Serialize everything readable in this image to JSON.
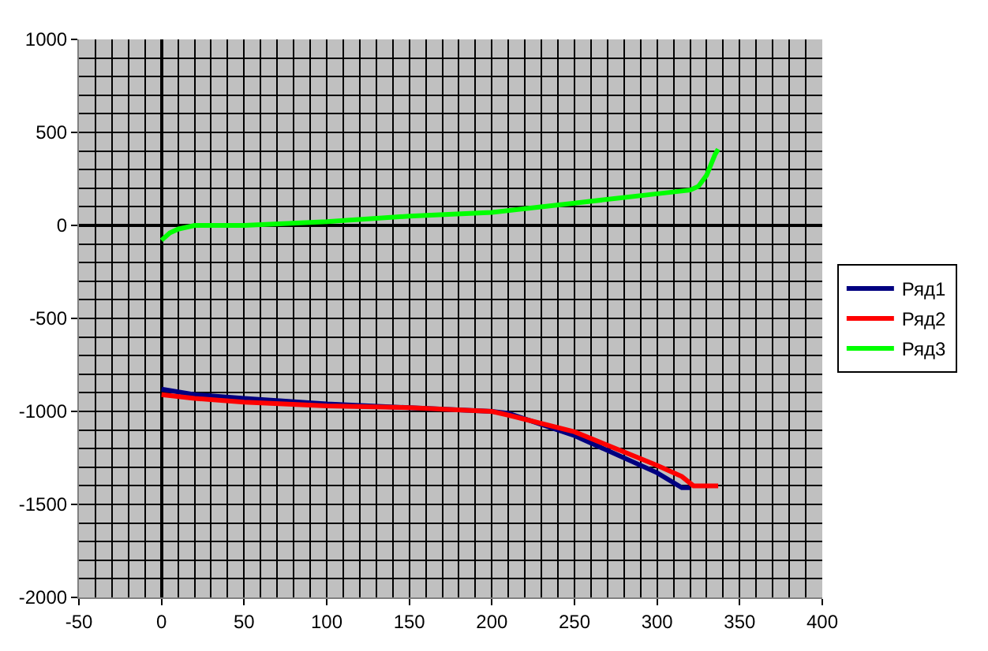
{
  "chart_data": {
    "type": "line",
    "xlim": [
      -50,
      400
    ],
    "xticks": [
      -50,
      0,
      50,
      100,
      150,
      200,
      250,
      300,
      350,
      400
    ],
    "ylim": [
      -2000,
      1000
    ],
    "yticks": [
      -2000,
      -1500,
      -1000,
      -500,
      0,
      500,
      1000
    ],
    "grid": true,
    "legend": "right",
    "marker": "none",
    "line_style": "solid",
    "series": [
      {
        "name": "Ряд1",
        "color": "#000080",
        "x": [
          0,
          20,
          50,
          100,
          150,
          200,
          210,
          250,
          300,
          315,
          320
        ],
        "values": [
          -880,
          -910,
          -930,
          -960,
          -980,
          -1000,
          -1010,
          -1130,
          -1330,
          -1410,
          -1410
        ]
      },
      {
        "name": "Ряд2",
        "color": "#ff0000",
        "x": [
          0,
          20,
          50,
          100,
          150,
          200,
          210,
          250,
          300,
          315,
          322,
          337
        ],
        "values": [
          -910,
          -930,
          -950,
          -970,
          -980,
          -1000,
          -1020,
          -1110,
          -1290,
          -1350,
          -1400,
          -1400
        ]
      },
      {
        "name": "Ряд3",
        "color": "#00ff00",
        "x": [
          0,
          5,
          10,
          20,
          50,
          100,
          150,
          200,
          220,
          250,
          300,
          320,
          325,
          330,
          335,
          337
        ],
        "values": [
          -80,
          -40,
          -20,
          0,
          0,
          20,
          50,
          70,
          90,
          120,
          170,
          190,
          210,
          270,
          380,
          410
        ]
      }
    ]
  }
}
